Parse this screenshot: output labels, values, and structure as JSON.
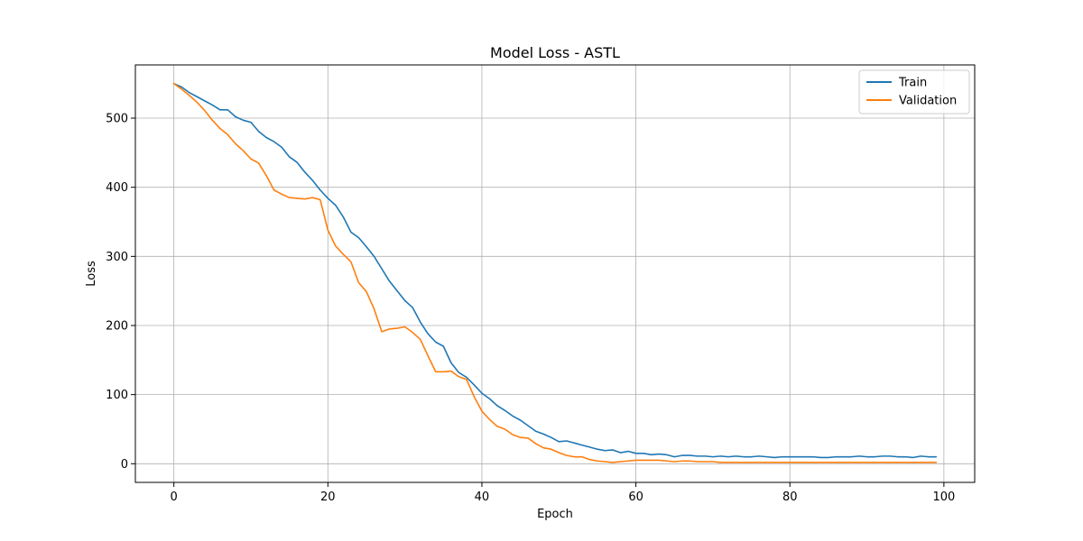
{
  "chart_data": {
    "type": "line",
    "title": "Model Loss - ASTL",
    "xlabel": "Epoch",
    "ylabel": "Loss",
    "xlim": [
      -5,
      104
    ],
    "ylim": [
      -27,
      577
    ],
    "xticks": [
      0,
      20,
      40,
      60,
      80,
      100
    ],
    "yticks": [
      0,
      100,
      200,
      300,
      400,
      500
    ],
    "grid": true,
    "legend_position": "top-right",
    "series": [
      {
        "name": "Train",
        "color": "#1f77b4",
        "x": [
          0,
          1,
          2,
          3,
          4,
          5,
          6,
          7,
          8,
          9,
          10,
          11,
          12,
          13,
          14,
          15,
          16,
          17,
          18,
          19,
          20,
          21,
          22,
          23,
          24,
          25,
          26,
          27,
          28,
          29,
          30,
          31,
          32,
          33,
          34,
          35,
          36,
          37,
          38,
          39,
          40,
          41,
          42,
          43,
          44,
          45,
          46,
          47,
          48,
          49,
          50,
          51,
          52,
          53,
          54,
          55,
          56,
          57,
          58,
          59,
          60,
          61,
          62,
          63,
          64,
          65,
          66,
          67,
          68,
          69,
          70,
          71,
          72,
          73,
          74,
          75,
          76,
          77,
          78,
          79,
          80,
          81,
          82,
          83,
          84,
          85,
          86,
          87,
          88,
          89,
          90,
          91,
          92,
          93,
          94,
          95,
          96,
          97,
          98,
          99
        ],
        "values": [
          550,
          545,
          537,
          531,
          525,
          519,
          512,
          512,
          502,
          497,
          494,
          481,
          472,
          466,
          458,
          444,
          436,
          422,
          410,
          396,
          384,
          374,
          357,
          335,
          327,
          314,
          300,
          282,
          264,
          250,
          236,
          226,
          205,
          188,
          176,
          170,
          146,
          132,
          125,
          114,
          102,
          94,
          84,
          77,
          69,
          63,
          55,
          47,
          43,
          38,
          32,
          33,
          30,
          27,
          24,
          21,
          19,
          20,
          16,
          18,
          15,
          15,
          13,
          14,
          13,
          10,
          12,
          12,
          11,
          11,
          10,
          11,
          10,
          11,
          10,
          10,
          11,
          10,
          9,
          10,
          10,
          10,
          10,
          10,
          9,
          9,
          10,
          10,
          10,
          11,
          10,
          10,
          11,
          11,
          10,
          10,
          9,
          11,
          10,
          10
        ]
      },
      {
        "name": "Validation",
        "color": "#ff7f0e",
        "x": [
          0,
          1,
          2,
          3,
          4,
          5,
          6,
          7,
          8,
          9,
          10,
          11,
          12,
          13,
          14,
          15,
          16,
          17,
          18,
          19,
          20,
          21,
          22,
          23,
          24,
          25,
          26,
          27,
          28,
          29,
          30,
          31,
          32,
          33,
          34,
          35,
          36,
          37,
          38,
          39,
          40,
          41,
          42,
          43,
          44,
          45,
          46,
          47,
          48,
          49,
          50,
          51,
          52,
          53,
          54,
          55,
          56,
          57,
          58,
          59,
          60,
          61,
          62,
          63,
          64,
          65,
          66,
          67,
          68,
          69,
          70,
          71,
          72,
          73,
          74,
          75,
          76,
          77,
          78,
          79,
          80,
          81,
          82,
          83,
          84,
          85,
          86,
          87,
          88,
          89,
          90,
          91,
          92,
          93,
          94,
          95,
          96,
          97,
          98,
          99
        ],
        "values": [
          550,
          542,
          533,
          523,
          511,
          497,
          485,
          476,
          463,
          453,
          441,
          435,
          417,
          396,
          390,
          385,
          384,
          383,
          385,
          382,
          338,
          315,
          303,
          292,
          262,
          249,
          224,
          191,
          195,
          196,
          198,
          190,
          180,
          156,
          133,
          133,
          134,
          126,
          122,
          97,
          76,
          64,
          54,
          50,
          42,
          38,
          37,
          29,
          23,
          21,
          16,
          12,
          10,
          10,
          6,
          4,
          3,
          2,
          3,
          4,
          5,
          5,
          5,
          5,
          4,
          3,
          4,
          4,
          3,
          3,
          3,
          2,
          2,
          2,
          2,
          2,
          2,
          2,
          2,
          2,
          2,
          2,
          2,
          2,
          2,
          2,
          2,
          2,
          2,
          2,
          2,
          2,
          2,
          2,
          2,
          2,
          2,
          2,
          2,
          2
        ]
      }
    ]
  }
}
